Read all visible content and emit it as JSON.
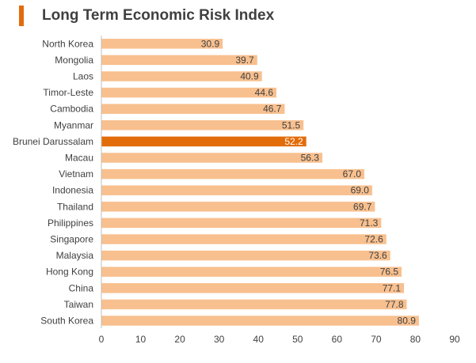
{
  "title": "Long Term Economic Risk Index",
  "colors": {
    "accent": "#E36C0A",
    "bar": "#F8C08F",
    "highlight": "#E36C0A",
    "axis": "#BFBFBF",
    "text": "#404040"
  },
  "chart_data": {
    "type": "bar",
    "orientation": "horizontal",
    "title": "Long Term Economic Risk Index",
    "categories": [
      "North Korea",
      "Mongolia",
      "Laos",
      "Timor-Leste",
      "Cambodia",
      "Myanmar",
      "Brunei Darussalam",
      "Macau",
      "Vietnam",
      "Indonesia",
      "Thailand",
      "Philippines",
      "Singapore",
      "Malaysia",
      "Hong Kong",
      "China",
      "Taiwan",
      "South Korea"
    ],
    "values": [
      30.9,
      39.7,
      40.9,
      44.6,
      46.7,
      51.5,
      52.2,
      56.3,
      67.0,
      69.0,
      69.7,
      71.3,
      72.6,
      73.6,
      76.5,
      77.1,
      77.8,
      80.9
    ],
    "value_labels": [
      "30.9",
      "39.7",
      "40.9",
      "44.6",
      "46.7",
      "51.5",
      "52.2",
      "56.3",
      "67.0",
      "69.0",
      "69.7",
      "71.3",
      "72.6",
      "73.6",
      "76.5",
      "77.1",
      "77.8",
      "80.9"
    ],
    "highlight": "Brunei Darussalam",
    "xlim": [
      0,
      90
    ],
    "xticks": [
      0,
      10,
      20,
      30,
      40,
      50,
      60,
      70,
      80,
      90
    ],
    "grid": false,
    "legend": "none"
  }
}
